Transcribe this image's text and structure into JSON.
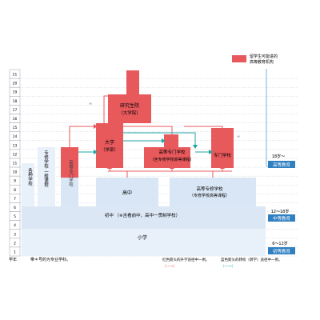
{
  "legend": {
    "text_line1": "留学生可能进的",
    "text_line2": "高等教育机构",
    "swatch_color": "#e8595c"
  },
  "ages": [
    "21",
    "20",
    "19",
    "18",
    "17",
    "16",
    "15",
    "14",
    "13",
    "12",
    "11",
    "10",
    "9",
    "8",
    "7",
    "6",
    "5",
    "4",
    "3",
    "2",
    "1"
  ],
  "axis_footer": "学年",
  "levels": {
    "elementary": "小学",
    "junior_high": "初中 （※含看前中、高中一贯制学校）",
    "senior_high": "高中",
    "college_tech": "高等专修学校",
    "college_tech_sub": "（专修学校高等课程）"
  },
  "institutions": {
    "graduate_school": "研究生院",
    "graduate_school_sub": "（大学院）",
    "university": "大学",
    "university_sub": "（学部）",
    "junior_college": "短期大学",
    "junior_college_sub": "（含专修学校高等课程）",
    "tech_college": "高等专门学校",
    "vocational_school": "专修学校·一般课程",
    "misc_school": "各种学校",
    "specialized_training": "专门学校",
    "specialized_training_sub": "（专修学校专门课程）"
  },
  "stages": {
    "higher": "高等教育",
    "secondary": "中等教育",
    "primary": "初等教育",
    "higher_age_note": "18岁～",
    "secondary_age_note": "12～18岁",
    "primary_age_note": "6～12岁"
  },
  "footnotes": {
    "note1": "带＊号的为专业学科。",
    "note2_line1": "红色箭头的升学途径中一例。",
    "note2_line2": "（──→）",
    "note3_line1": "蓝色箭头的转校（转学）途径中一例。",
    "note3_line2": "（──→）"
  },
  "colors": {
    "red": "#e8595c",
    "light_blue": "#d9e6f5",
    "lighter_blue": "#e8f0fa",
    "teal": "#1fa3a0",
    "stage_blue": "#2f7fc1"
  }
}
